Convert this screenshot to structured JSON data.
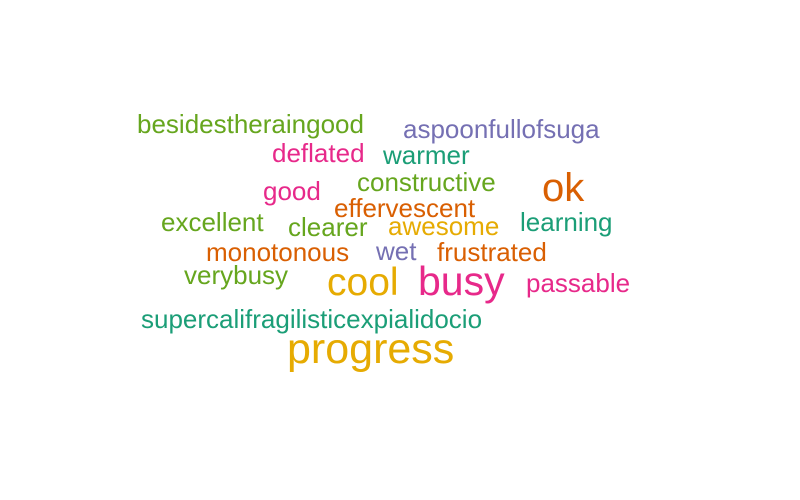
{
  "words": [
    {
      "text": "besidestheraingood",
      "color": "#66a61e"
    },
    {
      "text": "aspoonfullofsuga",
      "color": "#7570b3"
    },
    {
      "text": "deflated",
      "color": "#e7298a"
    },
    {
      "text": "warmer",
      "color": "#1b9e77"
    },
    {
      "text": "constructive",
      "color": "#66a61e"
    },
    {
      "text": "ok",
      "color": "#d95f02"
    },
    {
      "text": "good",
      "color": "#e7298a"
    },
    {
      "text": "effervescent",
      "color": "#d95f02"
    },
    {
      "text": "excellent",
      "color": "#66a61e"
    },
    {
      "text": "clearer",
      "color": "#66a61e"
    },
    {
      "text": "awesome",
      "color": "#e6ab02"
    },
    {
      "text": "learning",
      "color": "#1b9e77"
    },
    {
      "text": "monotonous",
      "color": "#d95f02"
    },
    {
      "text": "wet",
      "color": "#7570b3"
    },
    {
      "text": "frustrated",
      "color": "#d95f02"
    },
    {
      "text": "verybusy",
      "color": "#66a61e"
    },
    {
      "text": "cool",
      "color": "#e6ab02"
    },
    {
      "text": "busy",
      "color": "#e7298a"
    },
    {
      "text": "passable",
      "color": "#e7298a"
    },
    {
      "text": "supercalifragilisticexpialidocio",
      "color": "#1b9e77"
    },
    {
      "text": "progress",
      "color": "#e6ab02"
    }
  ]
}
